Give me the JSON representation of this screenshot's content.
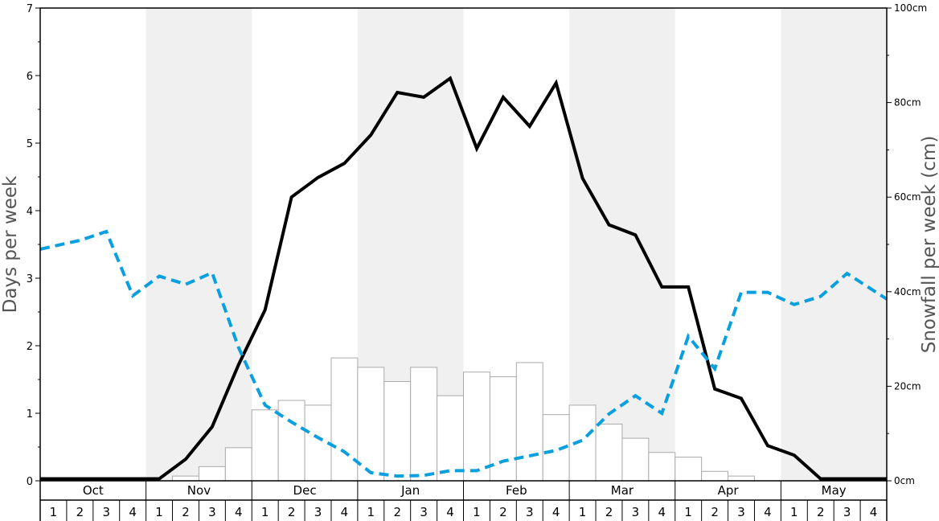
{
  "chart_data": {
    "type": "bar",
    "ylabel": "Days per week",
    "y2label": "Snowfall per week (cm)",
    "ylim": [
      0,
      7
    ],
    "y_ticks": [
      "0",
      "1",
      "2",
      "3",
      "4",
      "5",
      "6",
      "7"
    ],
    "y2lim": [
      0,
      100
    ],
    "y2_ticks": [
      "0cm",
      "20cm",
      "40cm",
      "60cm",
      "80cm",
      "100cm"
    ],
    "months": [
      "Oct",
      "Nov",
      "Dec",
      "Jan",
      "Feb",
      "Mar",
      "Apr",
      "May"
    ],
    "week_labels": [
      "1",
      "2",
      "3",
      "4"
    ],
    "shaded_months": [
      "Nov",
      "Jan",
      "Mar",
      "May"
    ],
    "colors": {
      "shade": "#f0f0f0",
      "bars_fill": "#ffffff",
      "bars_stroke": "#aaaaaa",
      "line_solid": "#000000",
      "line_dashed": "#0aa0e0"
    },
    "series": [
      {
        "kind": "bar",
        "axis": "right",
        "values": [
          0,
          0,
          0,
          0,
          0,
          1,
          3,
          7,
          15,
          17,
          16,
          26,
          24,
          21,
          24,
          18,
          23,
          22,
          25,
          14,
          16,
          12,
          9,
          6,
          5,
          2,
          1,
          0,
          0,
          0,
          0,
          0
        ]
      },
      {
        "kind": "line",
        "style": "solid",
        "axis": "left",
        "values": [
          0.03,
          0.03,
          0.03,
          0.03,
          0.03,
          0.32,
          0.8,
          1.72,
          2.53,
          4.2,
          4.49,
          4.7,
          5.12,
          5.75,
          5.68,
          5.96,
          4.92,
          5.68,
          5.25,
          5.89,
          4.48,
          3.79,
          3.64,
          2.87,
          2.87,
          1.36,
          1.22,
          0.52,
          0.38,
          0.03,
          0.03,
          0.03
        ]
      },
      {
        "kind": "line",
        "style": "dashed",
        "axis": "left",
        "values": [
          3.43,
          3.56,
          3.69,
          2.74,
          3.03,
          2.91,
          3.08,
          1.97,
          1.12,
          0.87,
          0.64,
          0.43,
          0.12,
          0.07,
          0.08,
          0.15,
          0.15,
          0.29,
          0.37,
          0.45,
          0.6,
          0.99,
          1.26,
          1.0,
          2.14,
          1.66,
          2.79,
          2.79,
          2.61,
          2.73,
          3.07,
          2.69
        ]
      }
    ]
  }
}
